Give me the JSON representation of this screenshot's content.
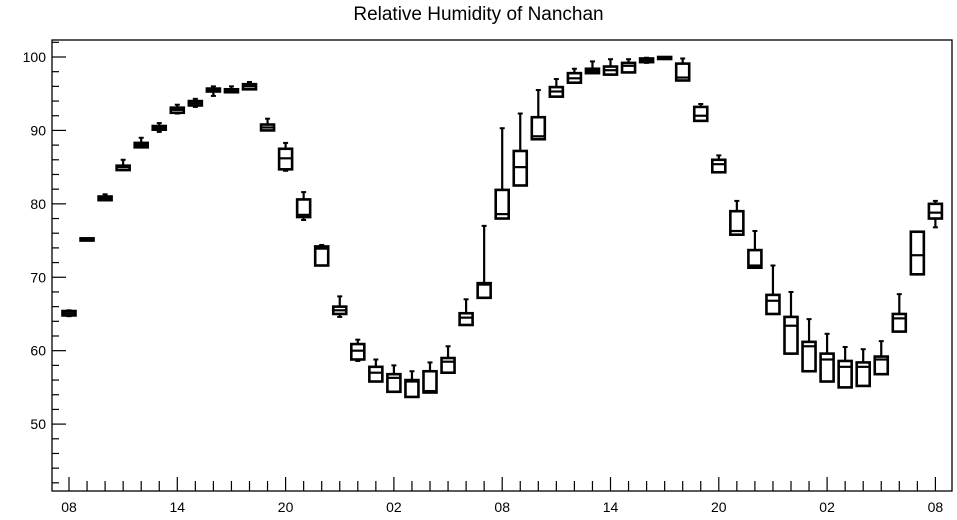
{
  "chart_data": {
    "type": "box",
    "title": "Relative Humidity of Nanchan",
    "xlabel": "",
    "ylabel": "",
    "ylim": [
      41,
      103
    ],
    "y_ticks": [
      50,
      60,
      70,
      80,
      90,
      100
    ],
    "x_ticks": [
      "08",
      "14",
      "20",
      "02",
      "08",
      "14",
      "20",
      "02",
      "08"
    ],
    "grid": false,
    "legend": "none",
    "box_color": "#000000",
    "boxes": [
      {
        "x": 0,
        "q1": 64.8,
        "median": 65.1,
        "q3": 65.4,
        "wlo": 64.7,
        "whi": 65.5
      },
      {
        "x": 1,
        "q1": 75.0,
        "median": 75.1,
        "q3": 75.3,
        "wlo": 75.0,
        "whi": 75.3
      },
      {
        "x": 2,
        "q1": 80.5,
        "median": 80.8,
        "q3": 81.0,
        "wlo": 80.5,
        "whi": 81.3
      },
      {
        "x": 3,
        "q1": 84.6,
        "median": 85.0,
        "q3": 85.2,
        "wlo": 84.6,
        "whi": 86.0
      },
      {
        "x": 4,
        "q1": 87.7,
        "median": 88.0,
        "q3": 88.3,
        "wlo": 87.7,
        "whi": 89.0
      },
      {
        "x": 5,
        "q1": 90.1,
        "median": 90.4,
        "q3": 90.6,
        "wlo": 89.8,
        "whi": 91.0
      },
      {
        "x": 6,
        "q1": 92.4,
        "median": 92.8,
        "q3": 93.1,
        "wlo": 92.3,
        "whi": 93.5
      },
      {
        "x": 7,
        "q1": 93.4,
        "median": 93.7,
        "q3": 94.0,
        "wlo": 93.2,
        "whi": 94.3
      },
      {
        "x": 8,
        "q1": 95.3,
        "median": 95.5,
        "q3": 95.7,
        "wlo": 94.7,
        "whi": 96.0
      },
      {
        "x": 9,
        "q1": 95.2,
        "median": 95.4,
        "q3": 95.6,
        "wlo": 95.2,
        "whi": 96.0
      },
      {
        "x": 10,
        "q1": 95.6,
        "median": 96.0,
        "q3": 96.3,
        "wlo": 95.6,
        "whi": 96.6
      },
      {
        "x": 11,
        "q1": 90.0,
        "median": 90.4,
        "q3": 90.8,
        "wlo": 90.0,
        "whi": 91.6
      },
      {
        "x": 12,
        "q1": 84.7,
        "median": 86.2,
        "q3": 87.5,
        "wlo": 84.5,
        "whi": 88.3
      },
      {
        "x": 13,
        "q1": 78.2,
        "median": 78.5,
        "q3": 80.6,
        "wlo": 77.8,
        "whi": 81.6
      },
      {
        "x": 14,
        "q1": 71.6,
        "median": 73.9,
        "q3": 74.2,
        "wlo": 71.6,
        "whi": 74.4
      },
      {
        "x": 15,
        "q1": 65.0,
        "median": 65.5,
        "q3": 66.0,
        "wlo": 64.6,
        "whi": 67.4
      },
      {
        "x": 16,
        "q1": 58.8,
        "median": 60.0,
        "q3": 60.9,
        "wlo": 58.6,
        "whi": 61.5
      },
      {
        "x": 17,
        "q1": 55.8,
        "median": 57.0,
        "q3": 57.8,
        "wlo": 55.8,
        "whi": 58.8
      },
      {
        "x": 18,
        "q1": 54.4,
        "median": 56.3,
        "q3": 56.8,
        "wlo": 54.4,
        "whi": 58.0
      },
      {
        "x": 19,
        "q1": 53.7,
        "median": 55.8,
        "q3": 56.0,
        "wlo": 53.7,
        "whi": 57.2
      },
      {
        "x": 20,
        "q1": 54.3,
        "median": 54.5,
        "q3": 57.2,
        "wlo": 54.3,
        "whi": 58.4
      },
      {
        "x": 21,
        "q1": 57.0,
        "median": 58.5,
        "q3": 59.0,
        "wlo": 57.0,
        "whi": 60.6
      },
      {
        "x": 22,
        "q1": 63.5,
        "median": 64.5,
        "q3": 65.1,
        "wlo": 63.5,
        "whi": 67.0
      },
      {
        "x": 23,
        "q1": 67.2,
        "median": 69.0,
        "q3": 69.2,
        "wlo": 67.2,
        "whi": 77.0
      },
      {
        "x": 24,
        "q1": 78.0,
        "median": 78.6,
        "q3": 81.9,
        "wlo": 78.0,
        "whi": 90.3
      },
      {
        "x": 25,
        "q1": 82.5,
        "median": 85.0,
        "q3": 87.2,
        "wlo": 82.5,
        "whi": 92.3
      },
      {
        "x": 26,
        "q1": 88.8,
        "median": 89.2,
        "q3": 91.8,
        "wlo": 88.8,
        "whi": 95.5
      },
      {
        "x": 27,
        "q1": 94.6,
        "median": 95.3,
        "q3": 95.9,
        "wlo": 94.6,
        "whi": 97.0
      },
      {
        "x": 28,
        "q1": 96.5,
        "median": 97.1,
        "q3": 97.8,
        "wlo": 96.5,
        "whi": 98.4
      },
      {
        "x": 29,
        "q1": 97.8,
        "median": 98.1,
        "q3": 98.4,
        "wlo": 97.8,
        "whi": 99.4
      },
      {
        "x": 30,
        "q1": 97.6,
        "median": 98.2,
        "q3": 98.7,
        "wlo": 97.6,
        "whi": 99.7
      },
      {
        "x": 31,
        "q1": 97.9,
        "median": 98.8,
        "q3": 99.2,
        "wlo": 97.9,
        "whi": 99.7
      },
      {
        "x": 32,
        "q1": 99.3,
        "median": 99.6,
        "q3": 99.8,
        "wlo": 99.2,
        "whi": 99.9
      },
      {
        "x": 33,
        "q1": 99.9,
        "median": 99.95,
        "q3": 100.0,
        "wlo": 99.8,
        "whi": 100.0
      },
      {
        "x": 34,
        "q1": 96.8,
        "median": 97.2,
        "q3": 99.1,
        "wlo": 96.8,
        "whi": 99.8
      },
      {
        "x": 35,
        "q1": 91.3,
        "median": 92.0,
        "q3": 93.2,
        "wlo": 91.3,
        "whi": 93.6
      },
      {
        "x": 36,
        "q1": 84.3,
        "median": 85.4,
        "q3": 86.0,
        "wlo": 84.3,
        "whi": 86.6
      },
      {
        "x": 37,
        "q1": 75.8,
        "median": 76.3,
        "q3": 79.0,
        "wlo": 75.8,
        "whi": 80.4
      },
      {
        "x": 38,
        "q1": 71.3,
        "median": 71.6,
        "q3": 73.7,
        "wlo": 71.3,
        "whi": 76.3
      },
      {
        "x": 39,
        "q1": 65.0,
        "median": 66.8,
        "q3": 67.6,
        "wlo": 65.0,
        "whi": 71.6
      },
      {
        "x": 40,
        "q1": 59.6,
        "median": 63.4,
        "q3": 64.6,
        "wlo": 59.6,
        "whi": 68.0
      },
      {
        "x": 41,
        "q1": 57.2,
        "median": 60.6,
        "q3": 61.2,
        "wlo": 57.2,
        "whi": 64.3
      },
      {
        "x": 42,
        "q1": 55.8,
        "median": 58.8,
        "q3": 59.6,
        "wlo": 55.8,
        "whi": 62.3
      },
      {
        "x": 43,
        "q1": 55.0,
        "median": 57.8,
        "q3": 58.6,
        "wlo": 55.0,
        "whi": 60.5
      },
      {
        "x": 44,
        "q1": 55.2,
        "median": 57.8,
        "q3": 58.4,
        "wlo": 55.2,
        "whi": 60.2
      },
      {
        "x": 45,
        "q1": 56.8,
        "median": 58.8,
        "q3": 59.2,
        "wlo": 56.8,
        "whi": 61.3
      },
      {
        "x": 46,
        "q1": 62.6,
        "median": 64.4,
        "q3": 65.0,
        "wlo": 62.6,
        "whi": 67.7
      },
      {
        "x": 47,
        "q1": 70.4,
        "median": 73.0,
        "q3": 76.2,
        "wlo": 70.4,
        "whi": 76.2
      },
      {
        "x": 48,
        "q1": 78.0,
        "median": 78.8,
        "q3": 80.0,
        "wlo": 76.8,
        "whi": 80.4
      }
    ]
  }
}
